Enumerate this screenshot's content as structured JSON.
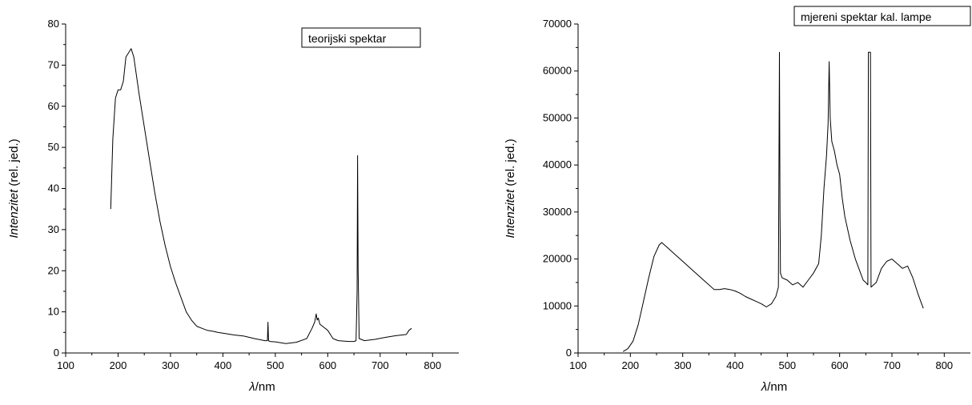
{
  "chart_data": [
    {
      "type": "line",
      "legend": "teorijski spektar",
      "ylabel_italic": "Intenzitet",
      "ylabel_rest": " (rel. jed.)",
      "xlabel_sym": "λ",
      "xlabel_unit": "/nm",
      "xlim": [
        100,
        850
      ],
      "ylim": [
        0,
        80
      ],
      "xticks": [
        100,
        200,
        300,
        400,
        500,
        600,
        700,
        800
      ],
      "yticks": [
        0,
        10,
        20,
        30,
        40,
        50,
        60,
        70,
        80
      ],
      "x": [
        186,
        190,
        195,
        200,
        205,
        210,
        215,
        220,
        225,
        230,
        240,
        250,
        260,
        270,
        280,
        290,
        300,
        310,
        320,
        330,
        340,
        350,
        360,
        370,
        380,
        390,
        400,
        420,
        440,
        460,
        480,
        485,
        486,
        487,
        488,
        490,
        500,
        520,
        540,
        560,
        570,
        575,
        578,
        580,
        582,
        585,
        590,
        600,
        610,
        620,
        640,
        650,
        654,
        656,
        657,
        658,
        660,
        670,
        690,
        710,
        730,
        750,
        755,
        760
      ],
      "y": [
        35,
        52,
        62,
        64,
        64,
        66,
        72,
        73,
        74,
        72,
        63,
        55,
        47,
        39,
        32,
        26,
        21,
        17,
        13.5,
        10,
        8,
        6.5,
        6,
        5.5,
        5.3,
        5,
        4.8,
        4.4,
        4.1,
        3.5,
        3.0,
        3.0,
        7.5,
        3.0,
        2.9,
        2.8,
        2.7,
        2.3,
        2.6,
        3.5,
        6.0,
        7.5,
        9.5,
        8.0,
        8.5,
        7.0,
        6.5,
        5.5,
        3.5,
        3.0,
        2.8,
        2.8,
        3.0,
        15,
        48,
        20,
        3.5,
        3.0,
        3.3,
        3.8,
        4.2,
        4.5,
        5.5,
        6.0
      ]
    },
    {
      "type": "line",
      "legend": "mjereni spektar kal. lampe",
      "ylabel_italic": "Intenzitet",
      "ylabel_rest": " (rel. jed.)",
      "xlabel_sym": "λ",
      "xlabel_unit": "/nm",
      "xlim": [
        100,
        850
      ],
      "ylim": [
        0,
        70000
      ],
      "xticks": [
        100,
        200,
        300,
        400,
        500,
        600,
        700,
        800
      ],
      "yticks": [
        0,
        10000,
        20000,
        30000,
        40000,
        50000,
        60000,
        70000
      ],
      "x": [
        186,
        195,
        205,
        215,
        225,
        235,
        245,
        255,
        260,
        265,
        270,
        280,
        290,
        300,
        320,
        340,
        360,
        370,
        380,
        390,
        400,
        410,
        420,
        430,
        440,
        450,
        460,
        470,
        478,
        483,
        485,
        486,
        487,
        490,
        500,
        510,
        520,
        530,
        540,
        550,
        560,
        565,
        570,
        575,
        578,
        580,
        582,
        585,
        590,
        595,
        600,
        605,
        610,
        620,
        630,
        640,
        645,
        650,
        654,
        655,
        656,
        657,
        658,
        659,
        660,
        670,
        680,
        690,
        700,
        710,
        720,
        730,
        740,
        750,
        755,
        760
      ],
      "y": [
        300,
        900,
        2500,
        6000,
        11000,
        16000,
        20500,
        23000,
        23500,
        23000,
        22500,
        21500,
        20500,
        19500,
        17500,
        15500,
        13500,
        13500,
        13700,
        13500,
        13200,
        12700,
        12000,
        11500,
        11000,
        10500,
        9800,
        10500,
        12000,
        14000,
        64000,
        30000,
        17000,
        16000,
        15500,
        14500,
        15000,
        14000,
        15500,
        17000,
        19000,
        25000,
        35000,
        42000,
        49000,
        62000,
        50000,
        45000,
        43000,
        40000,
        38000,
        33000,
        29000,
        24000,
        20000,
        17000,
        15500,
        15000,
        14500,
        64000,
        64000,
        64000,
        64000,
        64000,
        14000,
        15000,
        18000,
        19500,
        20000,
        19000,
        18000,
        18500,
        16000,
        12500,
        11000,
        9500
      ]
    }
  ]
}
